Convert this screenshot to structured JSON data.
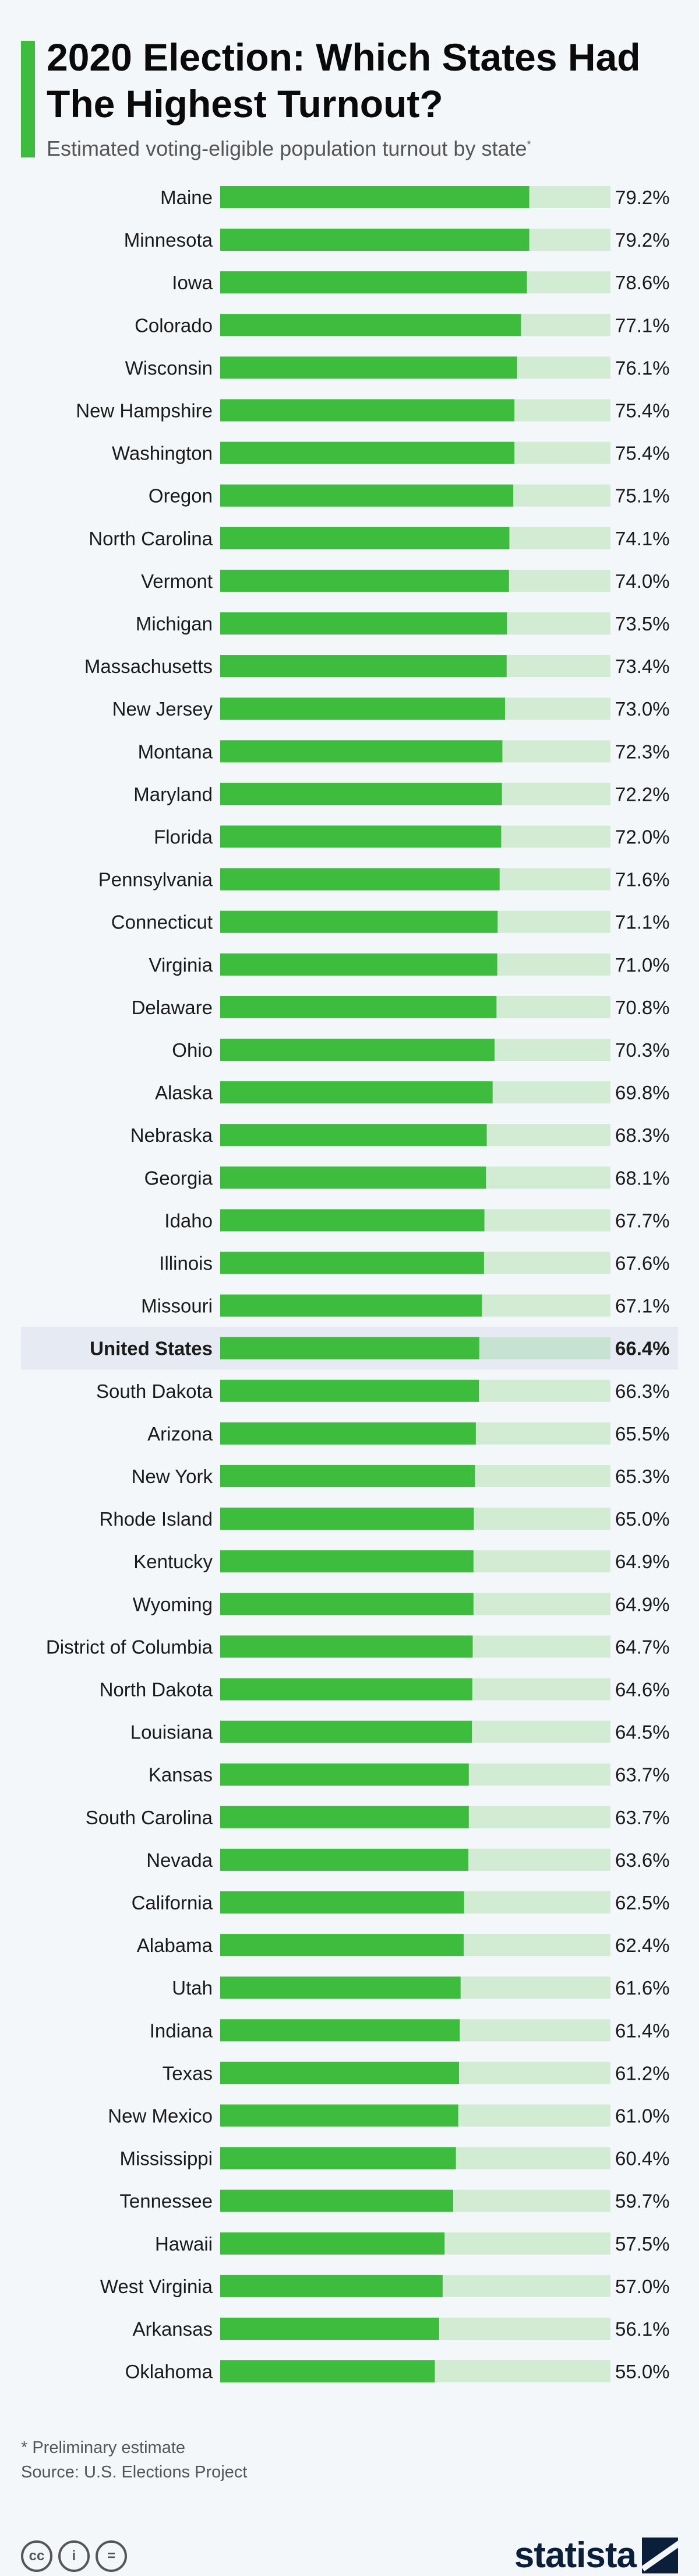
{
  "header": {
    "title": "2020 Election: Which States Had The Highest Turnout?",
    "subtitle": "Estimated voting-eligible population turnout by state",
    "subtitle_marker": "*"
  },
  "footer": {
    "note": "* Preliminary estimate",
    "source": "Source: U.S. Elections Project",
    "brand": "statista",
    "license_icons": [
      "cc-icon",
      "attribution-icon",
      "no-derivatives-icon"
    ],
    "license_glyphs": [
      "cc",
      "i",
      "="
    ]
  },
  "colors": {
    "bar": "#3dbc3d",
    "track": "#d2ecd4",
    "highlight_row": "#e6ebf3",
    "highlight_track": "#c6e2d0"
  },
  "chart_data": {
    "type": "bar",
    "orientation": "horizontal",
    "xlim": [
      0,
      100
    ],
    "value_suffix": "%",
    "highlight_category": "United States",
    "categories": [
      "Maine",
      "Minnesota",
      "Iowa",
      "Colorado",
      "Wisconsin",
      "New Hampshire",
      "Washington",
      "Oregon",
      "North Carolina",
      "Vermont",
      "Michigan",
      "Massachusetts",
      "New Jersey",
      "Montana",
      "Maryland",
      "Florida",
      "Pennsylvania",
      "Connecticut",
      "Virginia",
      "Delaware",
      "Ohio",
      "Alaska",
      "Nebraska",
      "Georgia",
      "Idaho",
      "Illinois",
      "Missouri",
      "United States",
      "South Dakota",
      "Arizona",
      "New York",
      "Rhode Island",
      "Kentucky",
      "Wyoming",
      "District of Columbia",
      "North Dakota",
      "Louisiana",
      "Kansas",
      "South Carolina",
      "Nevada",
      "California",
      "Alabama",
      "Utah",
      "Indiana",
      "Texas",
      "New Mexico",
      "Mississippi",
      "Tennessee",
      "Hawaii",
      "West Virginia",
      "Arkansas",
      "Oklahoma"
    ],
    "values": [
      79.2,
      79.2,
      78.6,
      77.1,
      76.1,
      75.4,
      75.4,
      75.1,
      74.1,
      74.0,
      73.5,
      73.4,
      73.0,
      72.3,
      72.2,
      72.0,
      71.6,
      71.1,
      71.0,
      70.8,
      70.3,
      69.8,
      68.3,
      68.1,
      67.7,
      67.6,
      67.1,
      66.4,
      66.3,
      65.5,
      65.3,
      65.0,
      64.9,
      64.9,
      64.7,
      64.6,
      64.5,
      63.7,
      63.7,
      63.6,
      62.5,
      62.4,
      61.6,
      61.4,
      61.2,
      61.0,
      60.4,
      59.7,
      57.5,
      57.0,
      56.1,
      55.0
    ],
    "value_labels": [
      "79.2%",
      "79.2%",
      "78.6%",
      "77.1%",
      "76.1%",
      "75.4%",
      "75.4%",
      "75.1%",
      "74.1%",
      "74.0%",
      "73.5%",
      "73.4%",
      "73.0%",
      "72.3%",
      "72.2%",
      "72.0%",
      "71.6%",
      "71.1%",
      "71.0%",
      "70.8%",
      "70.3%",
      "69.8%",
      "68.3%",
      "68.1%",
      "67.7%",
      "67.6%",
      "67.1%",
      "66.4%",
      "66.3%",
      "65.5%",
      "65.3%",
      "65.0%",
      "64.9%",
      "64.9%",
      "64.7%",
      "64.6%",
      "64.5%",
      "63.7%",
      "63.7%",
      "63.6%",
      "62.5%",
      "62.4%",
      "61.6%",
      "61.4%",
      "61.2%",
      "61.0%",
      "60.4%",
      "59.7%",
      "57.5%",
      "57.0%",
      "56.1%",
      "55.0%"
    ]
  }
}
